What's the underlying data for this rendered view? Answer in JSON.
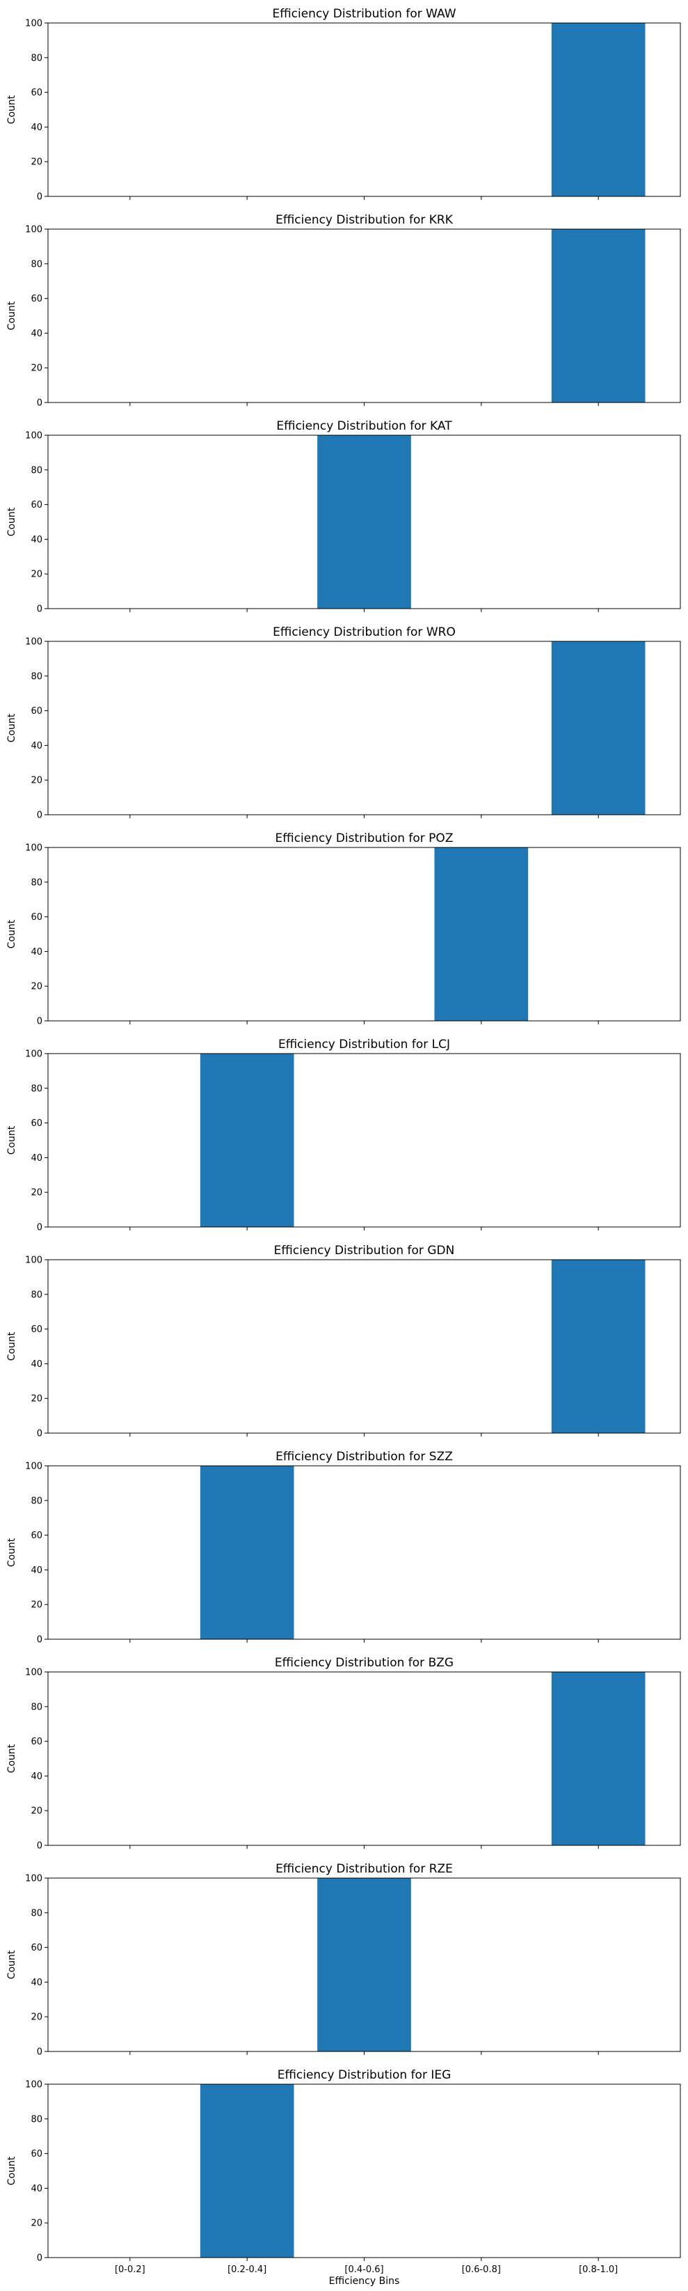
{
  "chart_data": [
    {
      "type": "bar",
      "title": "Efficiency Distribution for WAW",
      "ylabel": "Count",
      "xlabel": "",
      "ylim": [
        0,
        100
      ],
      "yticks": [
        0,
        20,
        40,
        60,
        80,
        100
      ],
      "categories": [
        "[0-0.2]",
        "[0.2-0.4]",
        "[0.4-0.6]",
        "[0.6-0.8]",
        "[0.8-1.0]"
      ],
      "values": [
        0,
        0,
        0,
        0,
        100
      ],
      "show_xticklabels": false
    },
    {
      "type": "bar",
      "title": "Efficiency Distribution for KRK",
      "ylabel": "Count",
      "xlabel": "",
      "ylim": [
        0,
        100
      ],
      "yticks": [
        0,
        20,
        40,
        60,
        80,
        100
      ],
      "categories": [
        "[0-0.2]",
        "[0.2-0.4]",
        "[0.4-0.6]",
        "[0.6-0.8]",
        "[0.8-1.0]"
      ],
      "values": [
        0,
        0,
        0,
        0,
        100
      ],
      "show_xticklabels": false
    },
    {
      "type": "bar",
      "title": "Efficiency Distribution for KAT",
      "ylabel": "Count",
      "xlabel": "",
      "ylim": [
        0,
        100
      ],
      "yticks": [
        0,
        20,
        40,
        60,
        80,
        100
      ],
      "categories": [
        "[0-0.2]",
        "[0.2-0.4]",
        "[0.4-0.6]",
        "[0.6-0.8]",
        "[0.8-1.0]"
      ],
      "values": [
        0,
        0,
        100,
        0,
        0
      ],
      "show_xticklabels": false
    },
    {
      "type": "bar",
      "title": "Efficiency Distribution for WRO",
      "ylabel": "Count",
      "xlabel": "",
      "ylim": [
        0,
        100
      ],
      "yticks": [
        0,
        20,
        40,
        60,
        80,
        100
      ],
      "categories": [
        "[0-0.2]",
        "[0.2-0.4]",
        "[0.4-0.6]",
        "[0.6-0.8]",
        "[0.8-1.0]"
      ],
      "values": [
        0,
        0,
        0,
        0,
        100
      ],
      "show_xticklabels": false
    },
    {
      "type": "bar",
      "title": "Efficiency Distribution for POZ",
      "ylabel": "Count",
      "xlabel": "",
      "ylim": [
        0,
        100
      ],
      "yticks": [
        0,
        20,
        40,
        60,
        80,
        100
      ],
      "categories": [
        "[0-0.2]",
        "[0.2-0.4]",
        "[0.4-0.6]",
        "[0.6-0.8]",
        "[0.8-1.0]"
      ],
      "values": [
        0,
        0,
        0,
        100,
        0
      ],
      "show_xticklabels": false
    },
    {
      "type": "bar",
      "title": "Efficiency Distribution for LCJ",
      "ylabel": "Count",
      "xlabel": "",
      "ylim": [
        0,
        100
      ],
      "yticks": [
        0,
        20,
        40,
        60,
        80,
        100
      ],
      "categories": [
        "[0-0.2]",
        "[0.2-0.4]",
        "[0.4-0.6]",
        "[0.6-0.8]",
        "[0.8-1.0]"
      ],
      "values": [
        0,
        100,
        0,
        0,
        0
      ],
      "show_xticklabels": false
    },
    {
      "type": "bar",
      "title": "Efficiency Distribution for GDN",
      "ylabel": "Count",
      "xlabel": "",
      "ylim": [
        0,
        100
      ],
      "yticks": [
        0,
        20,
        40,
        60,
        80,
        100
      ],
      "categories": [
        "[0-0.2]",
        "[0.2-0.4]",
        "[0.4-0.6]",
        "[0.6-0.8]",
        "[0.8-1.0]"
      ],
      "values": [
        0,
        0,
        0,
        0,
        100
      ],
      "show_xticklabels": false
    },
    {
      "type": "bar",
      "title": "Efficiency Distribution for SZZ",
      "ylabel": "Count",
      "xlabel": "",
      "ylim": [
        0,
        100
      ],
      "yticks": [
        0,
        20,
        40,
        60,
        80,
        100
      ],
      "categories": [
        "[0-0.2]",
        "[0.2-0.4]",
        "[0.4-0.6]",
        "[0.6-0.8]",
        "[0.8-1.0]"
      ],
      "values": [
        0,
        100,
        0,
        0,
        0
      ],
      "show_xticklabels": false
    },
    {
      "type": "bar",
      "title": "Efficiency Distribution for BZG",
      "ylabel": "Count",
      "xlabel": "",
      "ylim": [
        0,
        100
      ],
      "yticks": [
        0,
        20,
        40,
        60,
        80,
        100
      ],
      "categories": [
        "[0-0.2]",
        "[0.2-0.4]",
        "[0.4-0.6]",
        "[0.6-0.8]",
        "[0.8-1.0]"
      ],
      "values": [
        0,
        0,
        0,
        0,
        100
      ],
      "show_xticklabels": false
    },
    {
      "type": "bar",
      "title": "Efficiency Distribution for RZE",
      "ylabel": "Count",
      "xlabel": "",
      "ylim": [
        0,
        100
      ],
      "yticks": [
        0,
        20,
        40,
        60,
        80,
        100
      ],
      "categories": [
        "[0-0.2]",
        "[0.2-0.4]",
        "[0.4-0.6]",
        "[0.6-0.8]",
        "[0.8-1.0]"
      ],
      "values": [
        0,
        0,
        100,
        0,
        0
      ],
      "show_xticklabels": false
    },
    {
      "type": "bar",
      "title": "Efficiency Distribution for IEG",
      "ylabel": "Count",
      "xlabel": "Efficiency Bins",
      "ylim": [
        0,
        100
      ],
      "yticks": [
        0,
        20,
        40,
        60,
        80,
        100
      ],
      "categories": [
        "[0-0.2]",
        "[0.2-0.4]",
        "[0.4-0.6]",
        "[0.6-0.8]",
        "[0.8-1.0]"
      ],
      "values": [
        0,
        100,
        0,
        0,
        0
      ],
      "show_xticklabels": true
    }
  ],
  "colors": {
    "bar": "#1f77b4",
    "axes": "#000000",
    "background": "#ffffff"
  },
  "style": {
    "grid": false,
    "legend": "none"
  }
}
